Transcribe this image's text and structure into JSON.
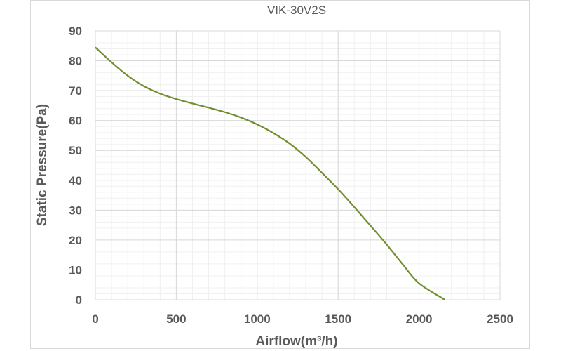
{
  "chart_data": {
    "type": "line",
    "title": "VIK-30V2S",
    "xlabel": "Airflow(m³/h)",
    "ylabel": "Static Pressure(Pa)",
    "xlim": [
      0,
      2500
    ],
    "ylim": [
      0,
      90
    ],
    "xticks": [
      0,
      500,
      1000,
      1500,
      2000,
      2500
    ],
    "yticks": [
      0,
      10,
      20,
      30,
      40,
      50,
      60,
      70,
      80,
      90
    ],
    "grid": true,
    "series": [
      {
        "color": "#6f8f2f",
        "points": [
          [
            0,
            84.5
          ],
          [
            100,
            79.5
          ],
          [
            200,
            75
          ],
          [
            300,
            71.5
          ],
          [
            400,
            69
          ],
          [
            500,
            67.2
          ],
          [
            600,
            65.7
          ],
          [
            700,
            64.3
          ],
          [
            800,
            62.8
          ],
          [
            900,
            61
          ],
          [
            1000,
            58.7
          ],
          [
            1100,
            55.8
          ],
          [
            1200,
            52.3
          ],
          [
            1300,
            47.8
          ],
          [
            1400,
            42.5
          ],
          [
            1500,
            37
          ],
          [
            1600,
            31
          ],
          [
            1700,
            24.8
          ],
          [
            1800,
            18.5
          ],
          [
            1900,
            11.8
          ],
          [
            2000,
            5.5
          ],
          [
            2160,
            0
          ]
        ]
      }
    ]
  }
}
